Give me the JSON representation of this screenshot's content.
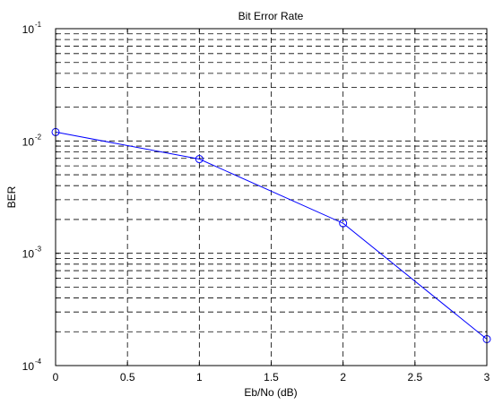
{
  "chart_data": {
    "type": "line",
    "title": "Bit Error Rate",
    "xlabel": "Eb/No (dB)",
    "ylabel": "BER",
    "x": [
      0,
      1,
      2,
      3
    ],
    "series": [
      {
        "values": [
          0.012,
          0.0069,
          0.00185,
          0.000172
        ],
        "color": "#0000ff",
        "marker": "circle"
      }
    ],
    "xlim": [
      0,
      3
    ],
    "ylim": [
      0.0001,
      0.1
    ],
    "yscale": "log",
    "grid": true,
    "grid_style": "dashed",
    "xticks": [
      {
        "value": 0,
        "label": "0"
      },
      {
        "value": 0.5,
        "label": "0.5"
      },
      {
        "value": 1,
        "label": "1"
      },
      {
        "value": 1.5,
        "label": "1.5"
      },
      {
        "value": 2,
        "label": "2"
      },
      {
        "value": 2.5,
        "label": "2.5"
      },
      {
        "value": 3,
        "label": "3"
      }
    ],
    "yticks": [
      {
        "value": 0.0001,
        "base": "10",
        "exp": "-4"
      },
      {
        "value": 0.001,
        "base": "10",
        "exp": "-3"
      },
      {
        "value": 0.01,
        "base": "10",
        "exp": "-2"
      },
      {
        "value": 0.1,
        "base": "10",
        "exp": "-1"
      }
    ]
  }
}
